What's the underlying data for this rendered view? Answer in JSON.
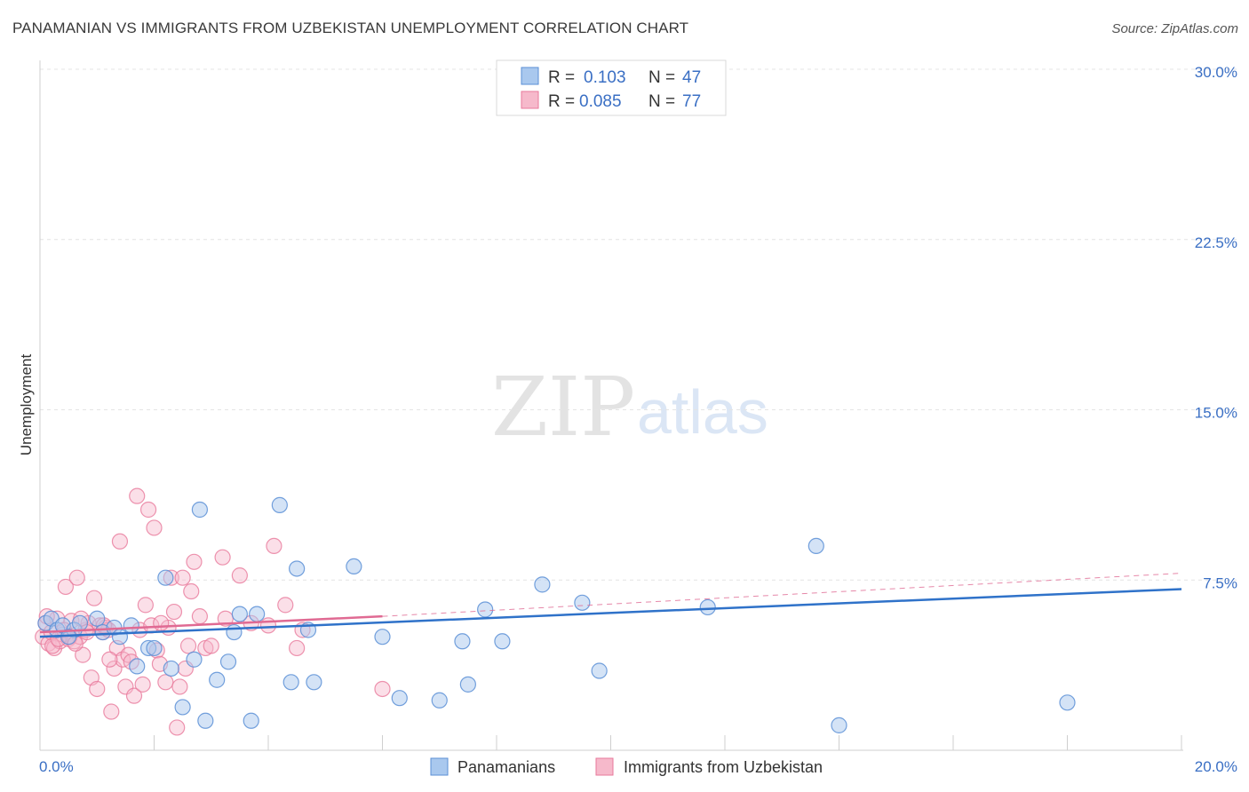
{
  "header": {
    "title": "PANAMANIAN VS IMMIGRANTS FROM UZBEKISTAN UNEMPLOYMENT CORRELATION CHART",
    "source": "Source: ZipAtlas.com"
  },
  "watermark": {
    "zip": "ZIP",
    "atlas": "atlas"
  },
  "legend": {
    "r_label": "R =",
    "n_label": "N =",
    "series": [
      {
        "r": "0.103",
        "n": "47"
      },
      {
        "r": "0.085",
        "n": "77"
      }
    ]
  },
  "chart_data": {
    "type": "scatter",
    "title": "PANAMANIAN VS IMMIGRANTS FROM UZBEKISTAN UNEMPLOYMENT CORRELATION CHART",
    "xlabel": "",
    "ylabel": "Unemployment",
    "xlim": [
      0,
      20
    ],
    "ylim": [
      0,
      30
    ],
    "x_ticks": [
      0,
      20
    ],
    "x_tick_labels": [
      "0.0%",
      "20.0%"
    ],
    "y_ticks": [
      7.5,
      15,
      22.5,
      30
    ],
    "y_tick_labels": [
      "7.5%",
      "15.0%",
      "22.5%",
      "30.0%"
    ],
    "grid": true,
    "legend_position": "top-center",
    "colors": {
      "Panamanians": {
        "fill": "#a9c8ee",
        "stroke": "#5b8fd6",
        "line": "#2f72c9"
      },
      "Immigrants from Uzbekistan": {
        "fill": "#f6b9cb",
        "stroke": "#e8799b",
        "line": "#e06a93"
      }
    },
    "series": [
      {
        "name": "Panamanians",
        "trend": {
          "x0": 0,
          "y0": 5.0,
          "x1": 20,
          "y1": 7.1,
          "style": "solid"
        },
        "points": [
          [
            0.1,
            5.6
          ],
          [
            0.2,
            5.8
          ],
          [
            0.3,
            5.3
          ],
          [
            0.4,
            5.5
          ],
          [
            0.6,
            5.3
          ],
          [
            0.7,
            5.6
          ],
          [
            1.0,
            5.8
          ],
          [
            1.1,
            5.2
          ],
          [
            1.3,
            5.4
          ],
          [
            1.4,
            5.0
          ],
          [
            1.6,
            5.5
          ],
          [
            1.7,
            3.7
          ],
          [
            1.9,
            4.5
          ],
          [
            2.0,
            4.5
          ],
          [
            2.2,
            7.6
          ],
          [
            2.3,
            3.6
          ],
          [
            2.5,
            1.9
          ],
          [
            2.7,
            4.0
          ],
          [
            2.8,
            10.6
          ],
          [
            2.9,
            1.3
          ],
          [
            3.1,
            3.1
          ],
          [
            3.3,
            3.9
          ],
          [
            3.4,
            5.2
          ],
          [
            3.5,
            6.0
          ],
          [
            3.7,
            1.3
          ],
          [
            3.8,
            6.0
          ],
          [
            4.2,
            10.8
          ],
          [
            4.4,
            3.0
          ],
          [
            4.5,
            8.0
          ],
          [
            4.7,
            5.3
          ],
          [
            4.8,
            3.0
          ],
          [
            5.5,
            8.1
          ],
          [
            6.0,
            5.0
          ],
          [
            6.3,
            2.3
          ],
          [
            7.0,
            2.2
          ],
          [
            7.4,
            4.8
          ],
          [
            7.5,
            2.9
          ],
          [
            7.8,
            6.2
          ],
          [
            8.1,
            4.8
          ],
          [
            8.8,
            7.3
          ],
          [
            9.5,
            6.5
          ],
          [
            9.8,
            3.5
          ],
          [
            11.7,
            6.3
          ],
          [
            13.6,
            9.0
          ],
          [
            14.0,
            1.1
          ],
          [
            18.0,
            2.1
          ],
          [
            0.5,
            5.0
          ]
        ]
      },
      {
        "name": "Immigrants from Uzbekistan",
        "trend": {
          "x0": 0,
          "y0": 5.2,
          "x1": 6.0,
          "y1": 5.9,
          "style": "solid",
          "extended_to": [
            20,
            7.8
          ],
          "extended_style": "dashed"
        },
        "points": [
          [
            0.05,
            5.0
          ],
          [
            0.1,
            5.6
          ],
          [
            0.15,
            4.7
          ],
          [
            0.2,
            5.2
          ],
          [
            0.25,
            4.5
          ],
          [
            0.3,
            5.8
          ],
          [
            0.35,
            4.8
          ],
          [
            0.4,
            5.1
          ],
          [
            0.45,
            7.2
          ],
          [
            0.5,
            4.9
          ],
          [
            0.55,
            5.7
          ],
          [
            0.6,
            4.8
          ],
          [
            0.65,
            7.6
          ],
          [
            0.7,
            5.0
          ],
          [
            0.75,
            4.2
          ],
          [
            0.8,
            5.3
          ],
          [
            0.85,
            5.6
          ],
          [
            0.9,
            3.2
          ],
          [
            0.95,
            6.7
          ],
          [
            1.0,
            2.7
          ],
          [
            1.05,
            5.5
          ],
          [
            1.1,
            5.2
          ],
          [
            1.15,
            5.4
          ],
          [
            1.2,
            5.3
          ],
          [
            1.25,
            1.7
          ],
          [
            1.3,
            3.6
          ],
          [
            1.35,
            4.5
          ],
          [
            1.4,
            9.2
          ],
          [
            1.45,
            4.0
          ],
          [
            1.5,
            2.8
          ],
          [
            1.55,
            4.2
          ],
          [
            1.6,
            3.9
          ],
          [
            1.65,
            2.4
          ],
          [
            1.7,
            11.2
          ],
          [
            1.75,
            5.3
          ],
          [
            1.8,
            2.9
          ],
          [
            1.85,
            6.4
          ],
          [
            1.9,
            10.6
          ],
          [
            1.95,
            5.5
          ],
          [
            2.0,
            9.8
          ],
          [
            2.05,
            4.4
          ],
          [
            2.1,
            3.8
          ],
          [
            2.2,
            3.0
          ],
          [
            2.25,
            5.4
          ],
          [
            2.3,
            7.6
          ],
          [
            2.35,
            6.1
          ],
          [
            2.4,
            1.0
          ],
          [
            2.45,
            2.8
          ],
          [
            2.5,
            7.6
          ],
          [
            2.55,
            3.6
          ],
          [
            2.6,
            4.6
          ],
          [
            2.65,
            7.0
          ],
          [
            2.7,
            8.3
          ],
          [
            2.8,
            5.9
          ],
          [
            2.9,
            4.5
          ],
          [
            3.0,
            4.6
          ],
          [
            3.2,
            8.5
          ],
          [
            3.25,
            5.8
          ],
          [
            3.5,
            7.7
          ],
          [
            3.7,
            5.6
          ],
          [
            4.0,
            5.5
          ],
          [
            4.1,
            9.0
          ],
          [
            4.3,
            6.4
          ],
          [
            4.5,
            4.5
          ],
          [
            4.6,
            5.3
          ],
          [
            6.0,
            2.7
          ],
          [
            0.12,
            5.9
          ],
          [
            0.22,
            4.6
          ],
          [
            0.32,
            4.9
          ],
          [
            0.42,
            5.3
          ],
          [
            0.52,
            5.0
          ],
          [
            0.62,
            4.7
          ],
          [
            0.72,
            5.8
          ],
          [
            1.12,
            5.5
          ],
          [
            1.22,
            4.0
          ],
          [
            2.12,
            5.6
          ],
          [
            0.82,
            5.2
          ]
        ]
      }
    ]
  },
  "bottom_legend": {
    "items": [
      "Panamanians",
      "Immigrants from Uzbekistan"
    ]
  }
}
